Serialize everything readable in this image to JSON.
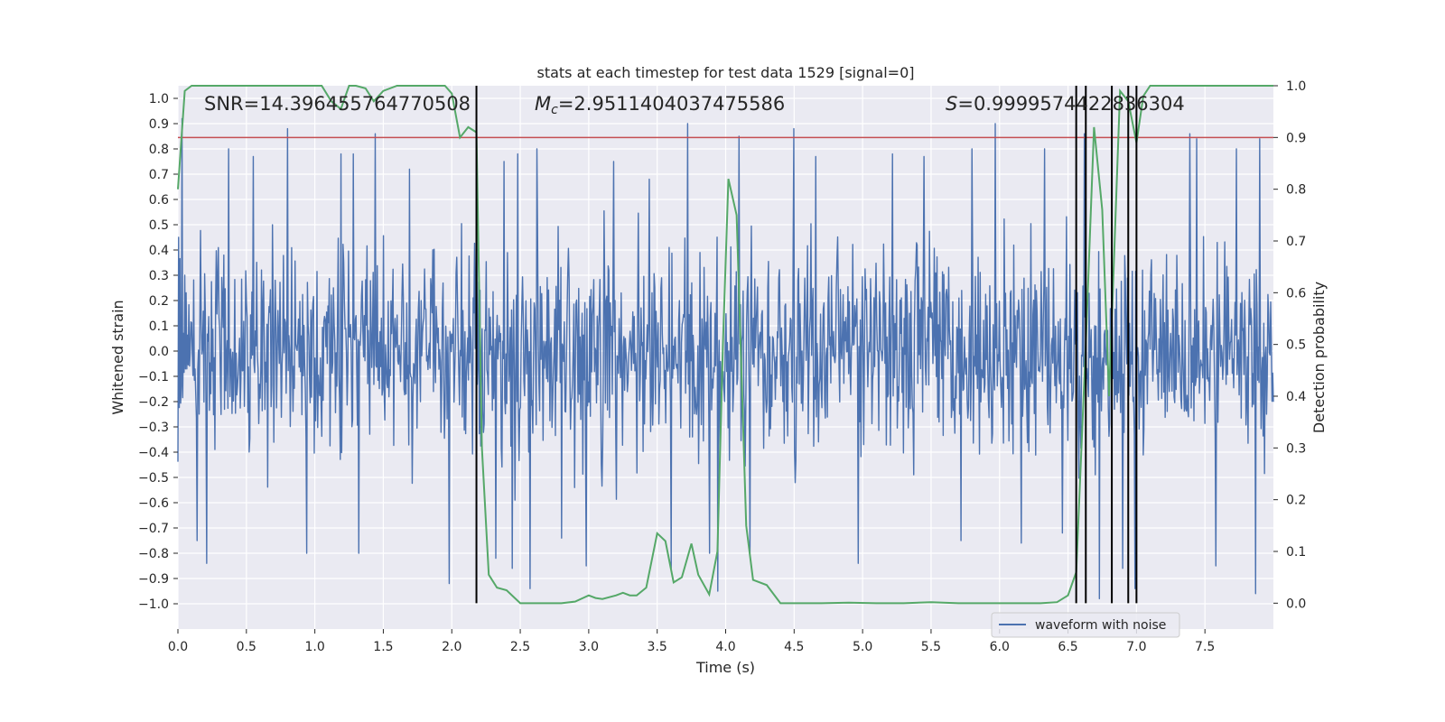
{
  "chart_data": {
    "type": "line",
    "title": "stats at each timestep for test data 1529 [signal=0]",
    "xlabel": "Time (s)",
    "ylabel_left": "Whitened strain",
    "ylabel_right": "Detection probability",
    "xlim": [
      0.0,
      8.0
    ],
    "ylim_left": [
      -1.1,
      1.05
    ],
    "ylim_right": [
      -0.05,
      1.0
    ],
    "x_ticks": [
      0.0,
      0.5,
      1.0,
      1.5,
      2.0,
      2.5,
      3.0,
      3.5,
      4.0,
      4.5,
      5.0,
      5.5,
      6.0,
      6.5,
      7.0,
      7.5
    ],
    "x_tick_labels": [
      "0.0",
      "0.5",
      "1.0",
      "1.5",
      "2.0",
      "2.5",
      "3.0",
      "3.5",
      "4.0",
      "4.5",
      "5.0",
      "5.5",
      "6.0",
      "6.5",
      "7.0",
      "7.5"
    ],
    "left_ticks": [
      1.0,
      0.9,
      0.8,
      0.7,
      0.6,
      0.5,
      0.4,
      0.3,
      0.2,
      0.1,
      0.0,
      -0.1,
      -0.2,
      -0.3,
      -0.4,
      -0.5,
      -0.6,
      -0.7,
      -0.8,
      -0.9,
      -1.0
    ],
    "left_tick_labels": [
      "1.0",
      "0.9",
      "0.8",
      "0.7",
      "0.6",
      "0.5",
      "0.4",
      "0.3",
      "0.2",
      "0.1",
      "0.0",
      "−0.1",
      "−0.2",
      "−0.3",
      "−0.4",
      "−0.5",
      "−0.6",
      "−0.7",
      "−0.8",
      "−0.9",
      "−1.0"
    ],
    "right_ticks": [
      1.0,
      0.9,
      0.8,
      0.7,
      0.6,
      0.5,
      0.4,
      0.3,
      0.2,
      0.1,
      0.0
    ],
    "right_tick_labels": [
      "1.0",
      "0.9",
      "0.8",
      "0.7",
      "0.6",
      "0.5",
      "0.4",
      "0.3",
      "0.2",
      "0.1",
      "0.0"
    ],
    "threshold": 0.9,
    "detection_times": [
      2.18,
      6.56,
      6.63,
      6.82,
      6.94,
      7.0
    ],
    "annotations": {
      "snr": "SNR=14.396455764770508",
      "mc_symbol": "M",
      "mc_subscript": "c",
      "mc_value": "=2.9511404037475586",
      "s_symbol": "S",
      "s_value": "=0.9999574422836304"
    },
    "series": [
      {
        "name": "detection probability",
        "axis": "right",
        "color": "#55a868",
        "x": [
          0.0,
          0.05,
          0.1,
          0.2,
          0.3,
          0.4,
          0.5,
          0.6,
          0.7,
          0.8,
          0.9,
          1.0,
          1.05,
          1.12,
          1.19,
          1.25,
          1.3,
          1.37,
          1.43,
          1.5,
          1.6,
          1.7,
          1.8,
          1.9,
          1.95,
          2.0,
          2.06,
          2.12,
          2.18,
          2.22,
          2.27,
          2.33,
          2.4,
          2.5,
          2.6,
          2.7,
          2.8,
          2.9,
          3.0,
          3.05,
          3.1,
          3.2,
          3.25,
          3.3,
          3.35,
          3.42,
          3.5,
          3.56,
          3.62,
          3.68,
          3.75,
          3.8,
          3.88,
          3.94,
          3.98,
          4.02,
          4.08,
          4.15,
          4.2,
          4.3,
          4.4,
          4.5,
          4.7,
          4.9,
          5.1,
          5.3,
          5.5,
          5.7,
          5.9,
          6.1,
          6.3,
          6.42,
          6.5,
          6.56,
          6.63,
          6.69,
          6.75,
          6.8,
          6.88,
          6.94,
          7.0,
          7.05,
          7.1,
          7.2,
          7.4,
          7.6,
          7.8,
          8.0
        ],
        "y": [
          0.8,
          0.99,
          1.0,
          1.0,
          1.0,
          1.0,
          1.0,
          1.0,
          1.0,
          1.0,
          1.0,
          1.0,
          1.0,
          0.97,
          0.955,
          1.0,
          1.0,
          0.995,
          0.97,
          0.99,
          1.0,
          1.0,
          1.0,
          1.0,
          1.0,
          0.985,
          0.9,
          0.92,
          0.91,
          0.3,
          0.055,
          0.03,
          0.025,
          0.0,
          0.0,
          0.0,
          0.0,
          0.003,
          0.015,
          0.01,
          0.008,
          0.015,
          0.02,
          0.015,
          0.015,
          0.03,
          0.135,
          0.12,
          0.04,
          0.05,
          0.115,
          0.055,
          0.017,
          0.1,
          0.5,
          0.82,
          0.75,
          0.15,
          0.045,
          0.035,
          0.0,
          0.0,
          0.0,
          0.001,
          0.0,
          0.0,
          0.002,
          0.0,
          0.0,
          0.0,
          0.0,
          0.002,
          0.015,
          0.06,
          0.5,
          0.92,
          0.76,
          0.4,
          0.99,
          0.97,
          0.89,
          0.98,
          1.0,
          1.0,
          1.0,
          1.0,
          1.0,
          1.0
        ]
      },
      {
        "name": "waveform with noise",
        "axis": "left",
        "color": "#4c72b0",
        "envelope_typical_abs": 0.4,
        "peak_max": 0.92,
        "peak_min": -0.98,
        "sample_count": 1600,
        "note": "dense noise series rendered from bounds and prominent spikes",
        "spikes": [
          [
            0.03,
            0.92
          ],
          [
            0.14,
            -0.75
          ],
          [
            0.21,
            -0.84
          ],
          [
            0.37,
            0.8
          ],
          [
            0.55,
            0.77
          ],
          [
            0.8,
            0.88
          ],
          [
            0.94,
            -0.8
          ],
          [
            1.19,
            0.78
          ],
          [
            1.28,
            0.78
          ],
          [
            1.32,
            -0.8
          ],
          [
            1.44,
            0.86
          ],
          [
            1.69,
            0.72
          ],
          [
            1.98,
            -0.92
          ],
          [
            2.18,
            0.84
          ],
          [
            2.32,
            -0.82
          ],
          [
            2.38,
            0.75
          ],
          [
            2.44,
            -0.86
          ],
          [
            2.48,
            0.78
          ],
          [
            2.57,
            -0.94
          ],
          [
            2.62,
            0.8
          ],
          [
            2.8,
            -0.74
          ],
          [
            2.98,
            -0.85
          ],
          [
            3.18,
            0.75
          ],
          [
            3.44,
            0.68
          ],
          [
            3.6,
            -0.86
          ],
          [
            3.72,
            0.9
          ],
          [
            3.88,
            -0.8
          ],
          [
            3.94,
            -0.95
          ],
          [
            4.1,
            0.85
          ],
          [
            4.18,
            -0.8
          ],
          [
            4.5,
            0.88
          ],
          [
            4.66,
            0.77
          ],
          [
            4.97,
            -0.84
          ],
          [
            5.22,
            0.78
          ],
          [
            5.45,
            0.77
          ],
          [
            5.72,
            -0.75
          ],
          [
            5.8,
            0.8
          ],
          [
            5.97,
            0.9
          ],
          [
            6.16,
            -0.76
          ],
          [
            6.33,
            0.8
          ],
          [
            6.46,
            -0.72
          ],
          [
            6.62,
            0.86
          ],
          [
            6.73,
            -0.98
          ],
          [
            6.9,
            -0.86
          ],
          [
            6.99,
            -0.94
          ],
          [
            7.39,
            0.86
          ],
          [
            7.44,
            0.84
          ],
          [
            7.58,
            -0.85
          ],
          [
            7.73,
            0.8
          ],
          [
            7.87,
            -0.96
          ],
          [
            7.9,
            0.84
          ]
        ]
      }
    ],
    "legend": {
      "label": "waveform with noise",
      "placement": "bottom-right"
    }
  }
}
